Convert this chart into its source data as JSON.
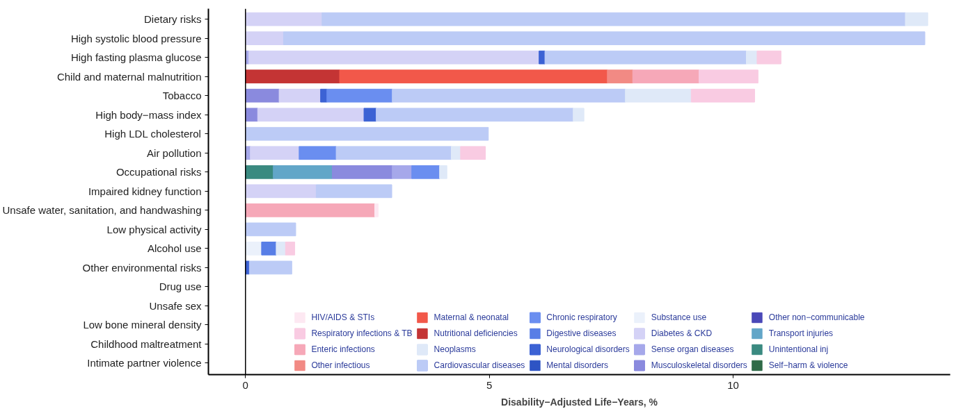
{
  "chart_data": {
    "type": "bar",
    "orientation": "horizontal",
    "stacked": true,
    "xlabel": "Disability−Adjusted Life−Years, %",
    "categories": [
      "Dietary risks",
      "High systolic blood pressure",
      "High fasting plasma glucose",
      "Child and maternal malnutrition",
      "Tobacco",
      "High body−mass index",
      "High LDL cholesterol",
      "Air pollution",
      "Occupational risks",
      "Impaired kidney function",
      "Unsafe water, sanitation, and handwashing",
      "Low physical activity",
      "Alcohol use",
      "Other environmental risks",
      "Drug use",
      "Unsafe sex",
      "Low bone mineral density",
      "Childhood maltreatment",
      "Intimate partner violence"
    ],
    "xlim": [
      -0.76,
      14.45
    ],
    "xticks": [
      0,
      5,
      10
    ],
    "grid": false,
    "legend": "bottom",
    "ref_lines": [
      {
        "axis": "x",
        "value": 0,
        "color": "#000000"
      }
    ],
    "series": [
      {
        "name": "Self−harm & violence",
        "color": "#2f6b48",
        "values": [
          null,
          null,
          null,
          null,
          null,
          null,
          null,
          null,
          null,
          null,
          null,
          null,
          null,
          null,
          null,
          null,
          null,
          null,
          null
        ]
      },
      {
        "name": "Unintentional inj",
        "color": "#3a8a80",
        "values": [
          null,
          null,
          null,
          null,
          null,
          null,
          null,
          null,
          0.57,
          null,
          null,
          null,
          null,
          null,
          null,
          null,
          null,
          null,
          null
        ]
      },
      {
        "name": "Transport injuries",
        "color": "#62a6c8",
        "values": [
          null,
          null,
          null,
          null,
          null,
          null,
          null,
          null,
          1.21,
          null,
          null,
          null,
          null,
          null,
          null,
          null,
          null,
          null,
          null
        ]
      },
      {
        "name": "Other non−communicable",
        "color": "#4a48b8",
        "values": [
          null,
          null,
          null,
          null,
          null,
          null,
          null,
          null,
          null,
          null,
          null,
          null,
          null,
          null,
          null,
          null,
          null,
          null,
          null
        ]
      },
      {
        "name": "Musculoskeletal disorders",
        "color": "#8a8ade",
        "values": [
          null,
          null,
          null,
          null,
          0.69,
          0.25,
          null,
          null,
          1.23,
          null,
          null,
          null,
          null,
          null,
          null,
          null,
          null,
          null,
          null
        ]
      },
      {
        "name": "Sense organ diseases",
        "color": "#a6a8ea",
        "values": [
          null,
          null,
          0.07,
          null,
          null,
          null,
          null,
          0.1,
          0.4,
          null,
          null,
          null,
          null,
          null,
          null,
          null,
          null,
          null,
          null
        ]
      },
      {
        "name": "Diabetes & CKD",
        "color": "#d4d2f6",
        "values": [
          1.57,
          0.78,
          5.95,
          null,
          0.85,
          2.18,
          null,
          1.0,
          null,
          1.45,
          null,
          null,
          null,
          null,
          null,
          null,
          null,
          null,
          null
        ]
      },
      {
        "name": "Substance use",
        "color": "#ebf1fb",
        "values": [
          null,
          null,
          null,
          null,
          null,
          null,
          null,
          null,
          null,
          null,
          null,
          null,
          0.33,
          null,
          null,
          null,
          null,
          null,
          null
        ]
      },
      {
        "name": "Mental disorders",
        "color": "#2e54c4",
        "values": [
          null,
          null,
          null,
          null,
          null,
          null,
          null,
          null,
          null,
          null,
          null,
          null,
          null,
          null,
          null,
          null,
          null,
          null,
          null
        ]
      },
      {
        "name": "Neurological disorders",
        "color": "#3c62d4",
        "values": [
          null,
          null,
          0.12,
          null,
          0.13,
          0.25,
          null,
          null,
          null,
          null,
          null,
          null,
          null,
          0.08,
          null,
          null,
          null,
          null,
          null
        ]
      },
      {
        "name": "Digestive diseases",
        "color": "#587ee6",
        "values": [
          null,
          null,
          null,
          null,
          null,
          null,
          null,
          null,
          null,
          null,
          null,
          null,
          0.3,
          null,
          null,
          null,
          null,
          null,
          null
        ]
      },
      {
        "name": "Chronic respiratory",
        "color": "#6a8ef0",
        "values": [
          null,
          null,
          null,
          null,
          1.34,
          null,
          null,
          0.76,
          0.57,
          null,
          null,
          null,
          null,
          null,
          null,
          null,
          null,
          null,
          null
        ]
      },
      {
        "name": "Cardiovascular diseases",
        "color": "#bccbf6",
        "values": [
          11.96,
          13.15,
          4.13,
          null,
          4.78,
          4.04,
          4.98,
          2.36,
          null,
          1.55,
          null,
          1.03,
          null,
          0.87,
          null,
          null,
          null,
          null,
          null
        ]
      },
      {
        "name": "Neoplasms",
        "color": "#dfe9f8",
        "values": [
          0.46,
          null,
          0.22,
          null,
          1.35,
          0.22,
          null,
          0.19,
          0.15,
          null,
          null,
          null,
          0.19,
          null,
          null,
          null,
          null,
          null,
          null
        ]
      },
      {
        "name": "Nutritional deficiencies",
        "color": "#c43434",
        "values": [
          null,
          null,
          null,
          1.93,
          null,
          null,
          null,
          null,
          null,
          null,
          null,
          null,
          null,
          null,
          null,
          null,
          null,
          null,
          null
        ]
      },
      {
        "name": "Maternal & neonatal",
        "color": "#f2584a",
        "values": [
          null,
          null,
          null,
          5.49,
          null,
          null,
          null,
          null,
          null,
          null,
          null,
          null,
          null,
          null,
          null,
          null,
          null,
          null,
          null
        ]
      },
      {
        "name": "Other infectious",
        "color": "#f28a84",
        "values": [
          null,
          null,
          null,
          0.52,
          null,
          null,
          null,
          null,
          null,
          null,
          null,
          null,
          null,
          null,
          null,
          null,
          null,
          null,
          null
        ]
      },
      {
        "name": "Enteric infections",
        "color": "#f6a8b8",
        "values": [
          null,
          null,
          null,
          1.36,
          null,
          null,
          null,
          null,
          null,
          null,
          2.65,
          null,
          null,
          null,
          null,
          null,
          null,
          null,
          null
        ]
      },
      {
        "name": "Respiratory infections & TB",
        "color": "#f9cbe2",
        "values": [
          null,
          null,
          0.49,
          1.21,
          1.3,
          null,
          null,
          0.51,
          null,
          null,
          null,
          null,
          0.19,
          null,
          null,
          null,
          null,
          null,
          null
        ]
      },
      {
        "name": "HIV/AIDS & STIs",
        "color": "#fde8f2",
        "values": [
          null,
          null,
          null,
          null,
          null,
          null,
          null,
          null,
          null,
          null,
          0.07,
          null,
          null,
          null,
          null,
          null,
          null,
          null,
          null
        ]
      }
    ]
  }
}
